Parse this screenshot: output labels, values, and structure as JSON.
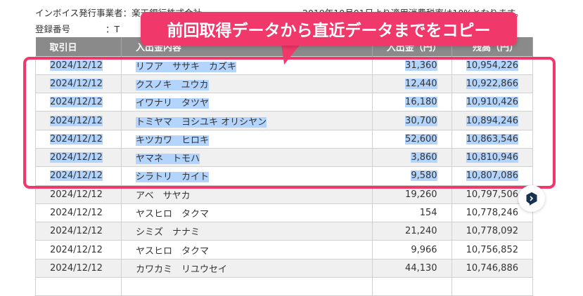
{
  "info": {
    "invoice_label": "インボイス発行事業者：楽天銀行株式会社",
    "registration_label": "登録番号　　　　：T",
    "tax_notice": "2019年10月01日より適用消費税率は10%となります。"
  },
  "callout": {
    "text": "前回取得データから直近データまでをコピー",
    "color": "#f0386b"
  },
  "table": {
    "headers": [
      "取引日",
      "入出金内容",
      "入出金（円）",
      "残高（円）"
    ],
    "rows": [
      {
        "date": "2024/12/12",
        "desc": "リフア　ササキ　カズキ",
        "amount": "31,360",
        "balance": "10,954,226",
        "selected": true
      },
      {
        "date": "2024/12/12",
        "desc": "クスノキ　ユウカ",
        "amount": "12,440",
        "balance": "10,922,866",
        "selected": true
      },
      {
        "date": "2024/12/12",
        "desc": "イワナリ　タツヤ",
        "amount": "16,180",
        "balance": "10,910,426",
        "selected": true
      },
      {
        "date": "2024/12/12",
        "desc": "トミヤマ　ヨシユキ オリシヤン",
        "amount": "30,700",
        "balance": "10,894,246",
        "selected": true
      },
      {
        "date": "2024/12/12",
        "desc": "キツカワ　ヒロキ",
        "amount": "52,600",
        "balance": "10,863,546",
        "selected": true
      },
      {
        "date": "2024/12/12",
        "desc": "ヤマネ　トモハ",
        "amount": "3,860",
        "balance": "10,810,946",
        "selected": true
      },
      {
        "date": "2024/12/12",
        "desc": "シラトリ　カイト",
        "amount": "9,580",
        "balance": "10,807,086",
        "selected": true
      },
      {
        "date": "2024/12/12",
        "desc": "アベ　サヤカ",
        "amount": "19,260",
        "balance": "10,797,506",
        "selected": false
      },
      {
        "date": "2024/12/12",
        "desc": "ヤスヒロ　タクマ",
        "amount": "154",
        "balance": "10,778,246",
        "selected": false
      },
      {
        "date": "2024/12/12",
        "desc": "シミズ　ナナミ",
        "amount": "21,240",
        "balance": "10,778,092",
        "selected": false
      },
      {
        "date": "2024/12/12",
        "desc": "ヤスヒロ　タクマ",
        "amount": "9,966",
        "balance": "10,756,852",
        "selected": false
      },
      {
        "date": "2024/12/12",
        "desc": "カワカミ　リユウセイ",
        "amount": "44,130",
        "balance": "10,746,886",
        "selected": false
      }
    ]
  },
  "fab": {
    "icon": "extension-logo-icon"
  }
}
